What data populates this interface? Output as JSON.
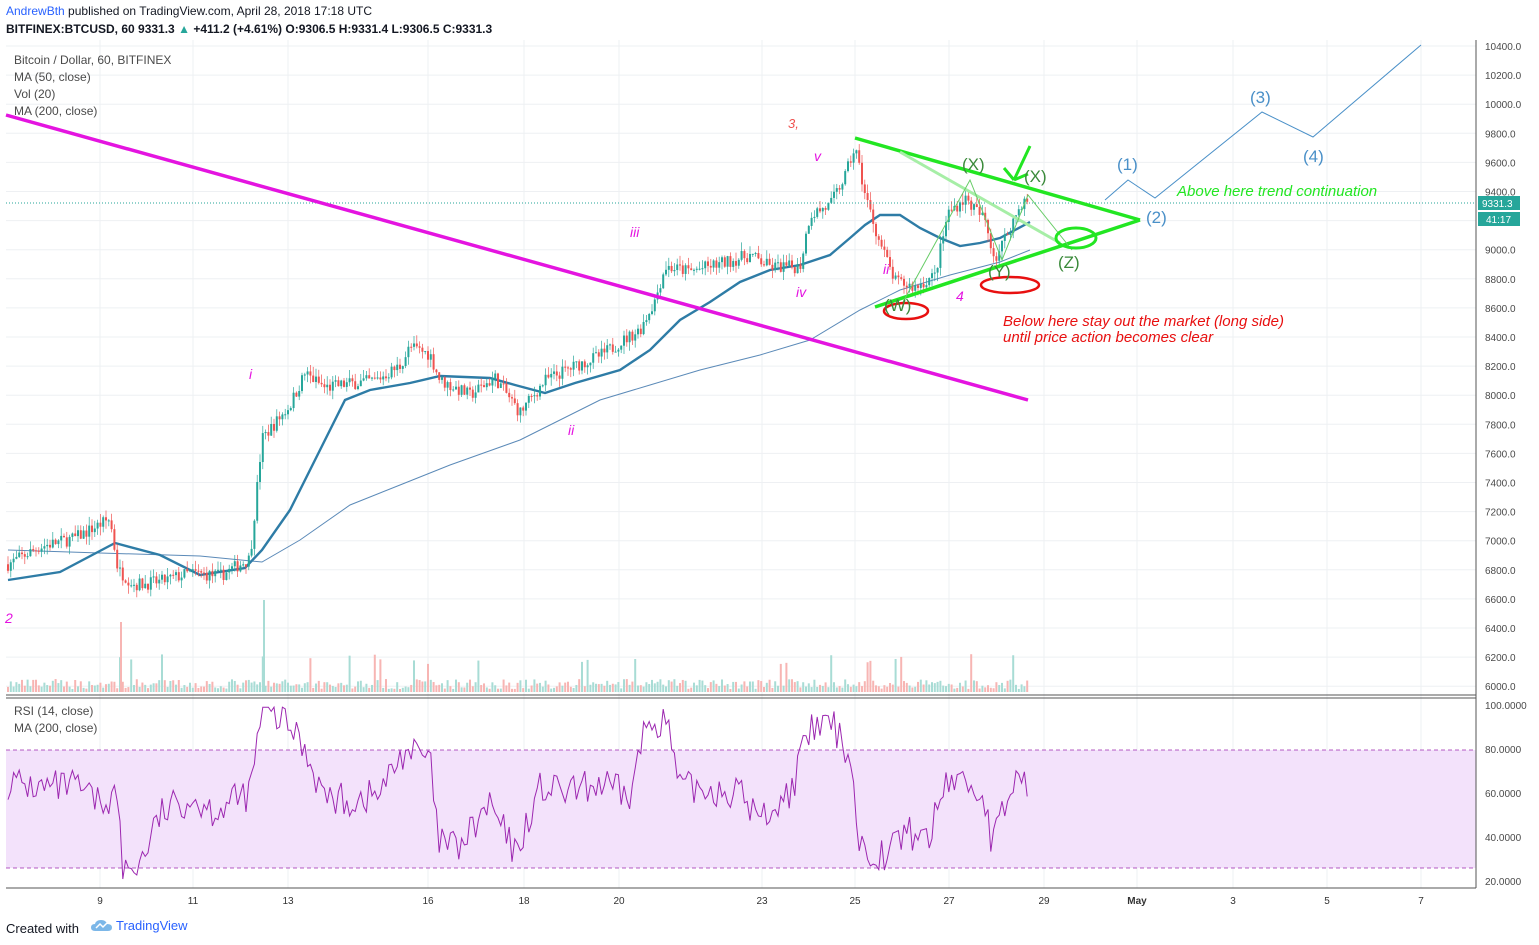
{
  "header": {
    "author": "AndrewBth",
    "published": "published on TradingView.com, April 28, 2018 17:18 UTC",
    "symbol_line": "BITFINEX:BTCUSD, 60",
    "last": "9331.3",
    "change": "+411.2 (+4.61%)",
    "ohlc": "O:9306.5 H:9331.4 L:9306.5 C:9331.3"
  },
  "legend": {
    "title": "Bitcoin / Dollar, 60, BITFINEX",
    "ma50": "MA (50, close)",
    "vol": "Vol (20)",
    "ma200": "MA (200, close)",
    "rsi": "RSI (14, close)",
    "rsi_ma": "MA (200, close)"
  },
  "price_axis": {
    "ticks": [
      "10400.0",
      "10200.0",
      "10000.0",
      "9800.0",
      "9600.0",
      "9400.0",
      "9200.0",
      "9000.0",
      "8800.0",
      "8600.0",
      "8400.0",
      "8200.0",
      "8000.0",
      "7800.0",
      "7600.0",
      "7400.0",
      "7200.0",
      "7000.0",
      "6800.0",
      "6600.0",
      "6400.0",
      "6200.0",
      "6000.0"
    ],
    "last_price": "9331.3",
    "countdown": "41:17"
  },
  "rsi_axis": {
    "ticks": [
      "100.0000",
      "80.0000",
      "60.0000",
      "40.0000",
      "20.0000"
    ]
  },
  "time_axis": {
    "ticks": [
      "9",
      "11",
      "13",
      "16",
      "18",
      "20",
      "23",
      "25",
      "27",
      "29",
      "May",
      "3",
      "5",
      "7"
    ]
  },
  "annotations": {
    "wave_labels": [
      "3,",
      "v",
      "iii",
      "iv",
      "i",
      "ii",
      "ii",
      "4",
      "2"
    ],
    "correction_labels": [
      "(X)",
      "(X)",
      "(W)",
      "(Y)",
      "(Z)"
    ],
    "projection_labels": [
      "(1)",
      "(2)",
      "(3)",
      "(4)"
    ],
    "bull_text": "Above here trend continuation",
    "bear_text_1": "Below here stay out the market (long side)",
    "bear_text_2": "until price action becomes clear"
  },
  "colors": {
    "up": "#26a69a",
    "down": "#ef5350",
    "ma50": "#2e7ca6",
    "ma200": "#5b8ab8",
    "trendline": "#e414e0",
    "triangle": "#22e622",
    "circle": "#e81010",
    "rsi_line": "#9c27b0",
    "rsi_band": "#f3e2fb",
    "projection": "#4a90c8"
  },
  "footer": {
    "created": "Created with",
    "brand": "TradingView"
  }
}
